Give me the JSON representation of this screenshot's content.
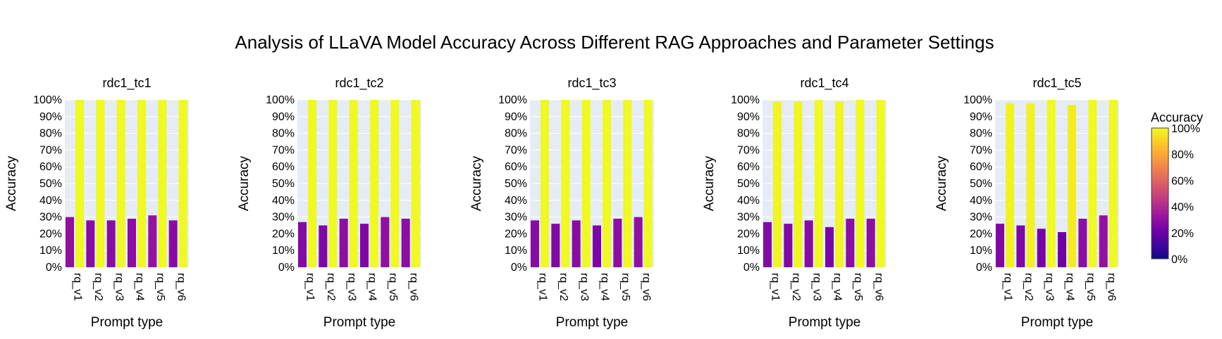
{
  "title": "Analysis of LLaVA Model Accuracy Across Different RAG Approaches and Parameter Settings",
  "colorbar": {
    "title": "Accuracy",
    "ticks": [
      "0%",
      "20%",
      "40%",
      "60%",
      "80%",
      "100%"
    ],
    "colorscale": [
      "#0d0887",
      "#46039f",
      "#7201a8",
      "#9c179e",
      "#bd3786",
      "#d8576b",
      "#ed7953",
      "#fb9f3a",
      "#fdca26",
      "#f0f921"
    ]
  },
  "chart_data": [
    {
      "type": "bar",
      "title": "rdc1_tc1",
      "xlabel": "Prompt type",
      "ylabel": "Accuracy",
      "categories": [
        "rq_v1",
        "rq_v2",
        "rq_v3",
        "rq_v4",
        "rq_v5",
        "rq_v6"
      ],
      "ylim": [
        0,
        1
      ],
      "yticks": [
        "0%",
        "10%",
        "20%",
        "30%",
        "40%",
        "50%",
        "60%",
        "70%",
        "80%",
        "90%",
        "100%"
      ],
      "series": [
        {
          "values": [
            0.3,
            0.28,
            0.28,
            0.29,
            0.31,
            0.28
          ]
        },
        {
          "values": [
            1.0,
            1.0,
            1.0,
            1.0,
            1.0,
            1.0
          ]
        }
      ]
    },
    {
      "type": "bar",
      "title": "rdc1_tc2",
      "xlabel": "Prompt type",
      "ylabel": "Accuracy",
      "categories": [
        "rq_v1",
        "rq_v2",
        "rq_v3",
        "rq_v4",
        "rq_v5",
        "rq_v6"
      ],
      "ylim": [
        0,
        1
      ],
      "yticks": [
        "0%",
        "10%",
        "20%",
        "30%",
        "40%",
        "50%",
        "60%",
        "70%",
        "80%",
        "90%",
        "100%"
      ],
      "series": [
        {
          "values": [
            0.27,
            0.25,
            0.29,
            0.26,
            0.3,
            0.29
          ]
        },
        {
          "values": [
            1.0,
            1.0,
            1.0,
            1.0,
            1.0,
            1.0
          ]
        }
      ]
    },
    {
      "type": "bar",
      "title": "rdc1_tc3",
      "xlabel": "Prompt type",
      "ylabel": "Accuracy",
      "categories": [
        "rq_v1",
        "rq_v2",
        "rq_v3",
        "rq_v4",
        "rq_v5",
        "rq_v6"
      ],
      "ylim": [
        0,
        1
      ],
      "yticks": [
        "0%",
        "10%",
        "20%",
        "30%",
        "40%",
        "50%",
        "60%",
        "70%",
        "80%",
        "90%",
        "100%"
      ],
      "series": [
        {
          "values": [
            0.28,
            0.26,
            0.28,
            0.25,
            0.29,
            0.3
          ]
        },
        {
          "values": [
            1.0,
            1.0,
            1.0,
            1.0,
            1.0,
            1.0
          ]
        }
      ]
    },
    {
      "type": "bar",
      "title": "rdc1_tc4",
      "xlabel": "Prompt type",
      "ylabel": "Accuracy",
      "categories": [
        "rq_v1",
        "rq_v2",
        "rq_v3",
        "rq_v4",
        "rq_v5",
        "rq_v6"
      ],
      "ylim": [
        0,
        1
      ],
      "yticks": [
        "0%",
        "10%",
        "20%",
        "30%",
        "40%",
        "50%",
        "60%",
        "70%",
        "80%",
        "90%",
        "100%"
      ],
      "series": [
        {
          "values": [
            0.27,
            0.26,
            0.28,
            0.24,
            0.29,
            0.29
          ]
        },
        {
          "values": [
            0.99,
            0.99,
            1.0,
            0.99,
            1.0,
            1.0
          ]
        }
      ]
    },
    {
      "type": "bar",
      "title": "rdc1_tc5",
      "xlabel": "Prompt type",
      "ylabel": "Accuracy",
      "categories": [
        "rq_v1",
        "rq_v2",
        "rq_v3",
        "rq_v4",
        "rq_v5",
        "rq_v6"
      ],
      "ylim": [
        0,
        1
      ],
      "yticks": [
        "0%",
        "10%",
        "20%",
        "30%",
        "40%",
        "50%",
        "60%",
        "70%",
        "80%",
        "90%",
        "100%"
      ],
      "series": [
        {
          "values": [
            0.26,
            0.25,
            0.23,
            0.21,
            0.29,
            0.31
          ]
        },
        {
          "values": [
            0.98,
            0.98,
            1.0,
            0.97,
            1.0,
            1.0
          ]
        }
      ]
    }
  ]
}
